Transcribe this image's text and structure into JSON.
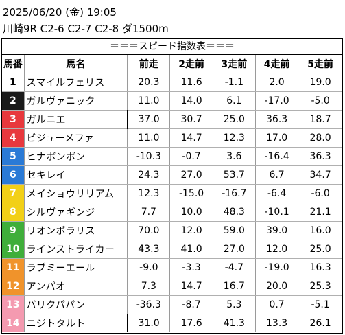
{
  "header": {
    "datetime": "2025/06/20 (金) 19:05",
    "race": "川崎9R C2-6 C2-7 C2-8 ダ1500m"
  },
  "table": {
    "title": "＝＝＝スピード指数表＝＝＝",
    "columns": [
      "馬番",
      "馬名",
      "前走",
      "2走前",
      "3走前",
      "4走前",
      "5走前"
    ],
    "rows": [
      {
        "num": "1",
        "name": "スマイルフェリス",
        "v": [
          "20.3",
          "11.6",
          "-1.1",
          "2.0",
          "19.0"
        ],
        "color": "#ffffff",
        "text": "#000000"
      },
      {
        "num": "2",
        "name": "ガルヴァニック",
        "v": [
          "11.0",
          "14.0",
          "6.1",
          "-17.0",
          "-5.0"
        ],
        "color": "#1a1a1a",
        "text": "#ffffff"
      },
      {
        "num": "3",
        "name": "ガルニエ",
        "v": [
          "37.0",
          "30.7",
          "25.0",
          "36.3",
          "18.7"
        ],
        "color": "#e8383d",
        "text": "#ffffff"
      },
      {
        "num": "4",
        "name": "ビジューメファ",
        "v": [
          "11.0",
          "14.7",
          "12.3",
          "17.0",
          "28.0"
        ],
        "color": "#e8383d",
        "text": "#ffffff"
      },
      {
        "num": "5",
        "name": "ヒナボンボン",
        "v": [
          "-10.3",
          "-0.7",
          "3.6",
          "-16.4",
          "36.3"
        ],
        "color": "#2a7ad6",
        "text": "#ffffff"
      },
      {
        "num": "6",
        "name": "セキレイ",
        "v": [
          "24.3",
          "27.0",
          "53.7",
          "6.7",
          "34.7"
        ],
        "color": "#2a7ad6",
        "text": "#ffffff"
      },
      {
        "num": "7",
        "name": "メイショウリリアム",
        "v": [
          "12.3",
          "-15.0",
          "-16.7",
          "-6.4",
          "-6.0"
        ],
        "color": "#f2d017",
        "text": "#ffffff"
      },
      {
        "num": "8",
        "name": "シルヴァギンジ",
        "v": [
          "7.7",
          "10.0",
          "48.3",
          "-10.1",
          "21.1"
        ],
        "color": "#f2d017",
        "text": "#ffffff"
      },
      {
        "num": "9",
        "name": "リオンポラリス",
        "v": [
          "70.0",
          "12.0",
          "59.0",
          "39.0",
          "16.0"
        ],
        "color": "#3fae3a",
        "text": "#ffffff"
      },
      {
        "num": "10",
        "name": "ラインストライカー",
        "v": [
          "43.3",
          "41.0",
          "27.0",
          "12.0",
          "25.0"
        ],
        "color": "#3fae3a",
        "text": "#ffffff"
      },
      {
        "num": "11",
        "name": "ラブミーエール",
        "v": [
          "-9.0",
          "-3.3",
          "-4.7",
          "-19.0",
          "16.3"
        ],
        "color": "#f0932b",
        "text": "#ffffff"
      },
      {
        "num": "12",
        "name": "アンパオ",
        "v": [
          "7.3",
          "14.7",
          "16.7",
          "20.0",
          "25.3"
        ],
        "color": "#f0932b",
        "text": "#ffffff"
      },
      {
        "num": "13",
        "name": "バリクパパン",
        "v": [
          "-36.3",
          "-8.7",
          "5.3",
          "0.7",
          "-5.1"
        ],
        "color": "#f49ab0",
        "text": "#ffffff"
      },
      {
        "num": "14",
        "name": "ニジトタルト",
        "v": [
          "31.0",
          "17.6",
          "41.3",
          "13.3",
          "26.1"
        ],
        "color": "#f49ab0",
        "text": "#ffffff"
      }
    ]
  }
}
